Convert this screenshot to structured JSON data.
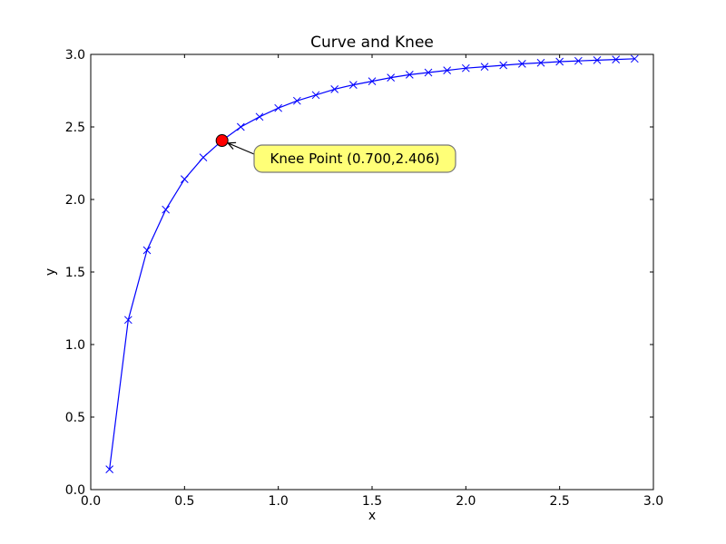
{
  "chart_data": {
    "type": "line",
    "title": "Curve and Knee",
    "xlabel": "x",
    "ylabel": "y",
    "xlim": [
      0.0,
      3.0
    ],
    "ylim": [
      0.0,
      3.0
    ],
    "xticks": [
      "0.0",
      "0.5",
      "1.0",
      "1.5",
      "2.0",
      "2.5",
      "3.0"
    ],
    "yticks": [
      "0.0",
      "0.5",
      "1.0",
      "1.5",
      "2.0",
      "2.5",
      "3.0"
    ],
    "grid": false,
    "series": [
      {
        "marker": "x",
        "color": "#0000ff",
        "x": [
          0.1,
          0.2,
          0.3,
          0.4,
          0.5,
          0.6,
          0.7,
          0.8,
          0.9,
          1.0,
          1.1,
          1.2,
          1.3,
          1.4,
          1.5,
          1.6,
          1.7,
          1.8,
          1.9,
          2.0,
          2.1,
          2.2,
          2.3,
          2.4,
          2.5,
          2.6,
          2.7,
          2.8,
          2.9
        ],
        "y": [
          0.14,
          1.17,
          1.65,
          1.93,
          2.14,
          2.29,
          2.406,
          2.5,
          2.57,
          2.63,
          2.68,
          2.72,
          2.76,
          2.79,
          2.815,
          2.84,
          2.86,
          2.875,
          2.89,
          2.905,
          2.915,
          2.925,
          2.935,
          2.942,
          2.95,
          2.955,
          2.96,
          2.965,
          2.97
        ]
      }
    ],
    "annotations": [
      {
        "text": "Knee Point (0.700,2.406)",
        "x": 0.7,
        "y": 2.406,
        "marker_color": "#ff0000",
        "box_color": "#ffff77"
      }
    ]
  }
}
